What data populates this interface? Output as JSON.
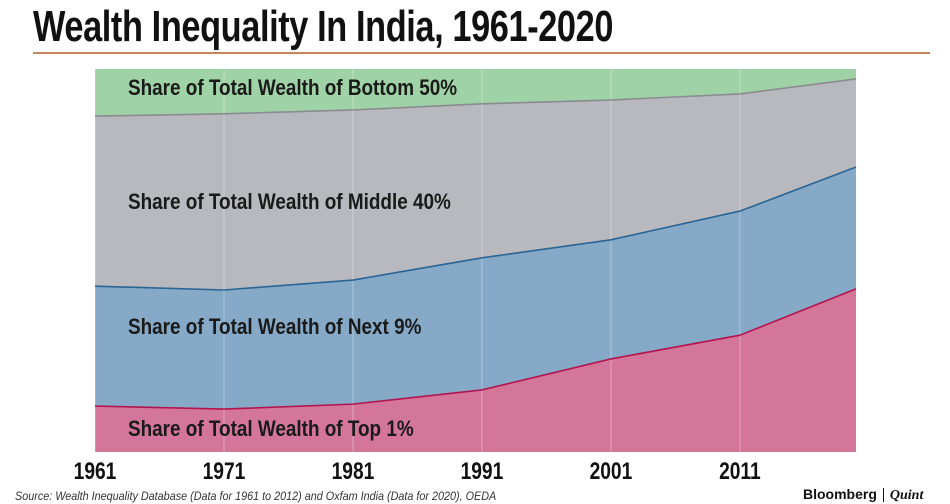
{
  "chart_data": {
    "type": "area",
    "stacked": true,
    "title": "Wealth Inequality In India, 1961-2020",
    "xlabel": "",
    "ylabel": "",
    "x": [
      1961,
      1971,
      1981,
      1991,
      2001,
      2011,
      2020
    ],
    "x_tick_labels": [
      "1961",
      "1971",
      "1981",
      "1991",
      "2001",
      "2011"
    ],
    "ylim": [
      0,
      100
    ],
    "grid": "vertical",
    "series": [
      {
        "name": "Share of Total Wealth of Top 1%",
        "values": [
          12.0,
          11.2,
          12.5,
          16.2,
          24.3,
          30.5,
          42.6
        ],
        "color": "#d3769a",
        "line": "#b3164f"
      },
      {
        "name": "Share of Total Wealth of Next 9%",
        "values": [
          31.3,
          31.1,
          32.4,
          34.5,
          31.1,
          32.4,
          31.8
        ],
        "color": "#85a9c7",
        "line": "#2b6596"
      },
      {
        "name": "Share of Total Wealth of Middle 40%",
        "values": [
          44.4,
          46.0,
          44.4,
          40.2,
          36.5,
          30.6,
          23.0
        ],
        "color": "#b8b9be",
        "line": "#8a8c92"
      },
      {
        "name": "Share of Total Wealth of Bottom 50%",
        "values": [
          12.3,
          11.7,
          10.7,
          9.1,
          8.1,
          6.5,
          2.6
        ],
        "color": "#9fd2a6",
        "line": "#7fb788"
      }
    ]
  },
  "source": "Source: Wealth Inequality Database (Data for 1961 to 2012) and Oxfam India (Data for 2020), OEDA",
  "brand": {
    "left": "Bloomberg",
    "right": "Quint"
  }
}
